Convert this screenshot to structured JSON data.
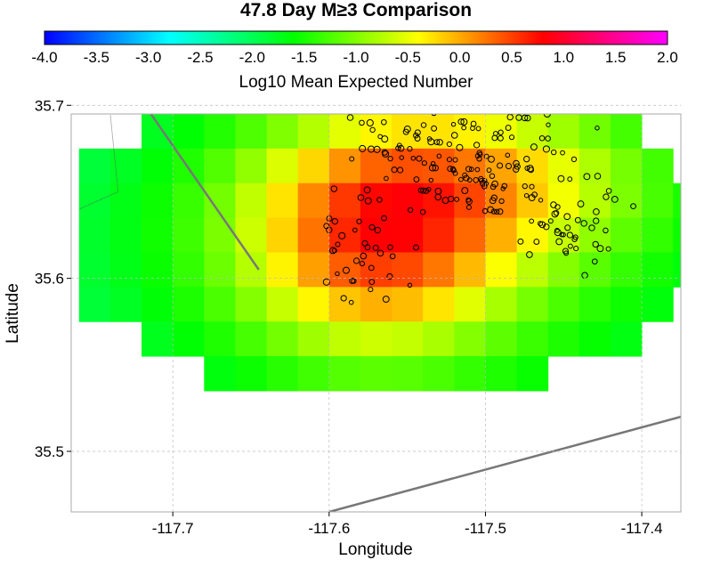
{
  "chart_data": {
    "type": "heatmap",
    "title": "47.8 Day M≥3 Comparison",
    "xlabel": "Longitude",
    "ylabel": "Latitude",
    "xlim": [
      -117.765,
      -117.375
    ],
    "ylim": [
      35.465,
      35.695
    ],
    "x_ticks": [
      "-117.7",
      "-117.6",
      "-117.5",
      "-117.4"
    ],
    "x_tick_values": [
      -117.7,
      -117.6,
      -117.5,
      -117.4
    ],
    "y_ticks": [
      "35.5",
      "35.6",
      "35.7"
    ],
    "y_tick_values": [
      35.5,
      35.6,
      35.7
    ],
    "grid": true,
    "colorbar": {
      "label": "Log10 Mean Expected Number",
      "min": -4.0,
      "max": 2.0,
      "ticks": [
        "-4.0",
        "-3.5",
        "-3.0",
        "-2.5",
        "-2.0",
        "-1.5",
        "-1.0",
        "-0.5",
        "0.0",
        "0.5",
        "1.0",
        "1.5",
        "2.0"
      ],
      "colors": [
        "#0000ff",
        "#00ffff",
        "#00ff00",
        "#ffff00",
        "#ff0000",
        "#ff00ff"
      ]
    },
    "grid_cells": {
      "lon0": -117.76,
      "lat_top": 35.775,
      "cell_deg": 0.02,
      "rows": [
        "......................",
        "........11.11.........",
        "........11.11.........",
        ".........11.11........",
        "..........1111111.....",
        "..............1111....",
        ".............1111111..",
        "..............111111..",
        "..............1111111.",
        ".............11111111.",
        "..............1111111.",
        "...............111111.",
        "...............11111..",
        "................111..."
      ]
    }
  }
}
